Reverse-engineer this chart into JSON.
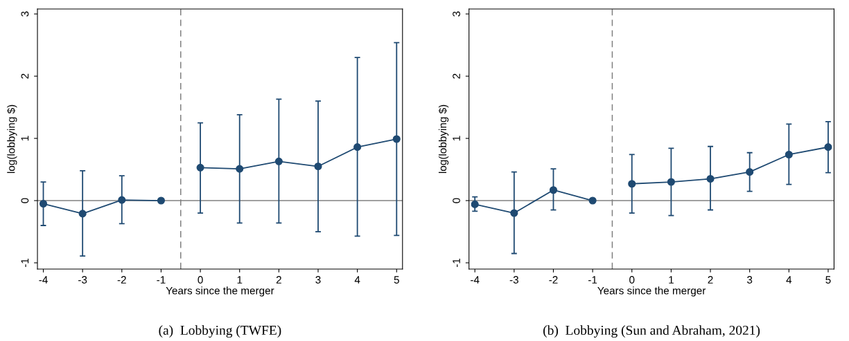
{
  "chart_data": [
    {
      "type": "line",
      "xlabel": "Years since the merger",
      "ylabel": "log(lobbying $)",
      "series": [
        {
          "color": "#1f4a72",
          "x": [
            -4,
            -3,
            -2,
            -1
          ],
          "values": [
            -0.05,
            -0.21,
            0.01,
            0
          ],
          "errors": [
            [
              -0.4,
              0.3
            ],
            [
              -0.89,
              0.48
            ],
            [
              -0.37,
              0.4
            ],
            null
          ]
        },
        {
          "color": "#1f4a72",
          "x": [
            0,
            1,
            2,
            3,
            4,
            5
          ],
          "values": [
            0.53,
            0.51,
            0.63,
            0.55,
            0.86,
            0.99
          ],
          "errors": [
            [
              -0.2,
              1.25
            ],
            [
              -0.36,
              1.38
            ],
            [
              -0.36,
              1.63
            ],
            [
              -0.5,
              1.6
            ],
            [
              -0.57,
              2.3
            ],
            [
              -0.56,
              2.54
            ]
          ]
        }
      ],
      "xlim": [
        -4.15,
        5.15
      ],
      "ylim": [
        -1.1,
        3.08
      ],
      "xticks": [
        -4,
        -3,
        -2,
        -1,
        0,
        1,
        2,
        3,
        4,
        5
      ],
      "yticks": [
        -1,
        0,
        1,
        2,
        3
      ],
      "ref_lines": [
        {
          "axis": "y",
          "value": 0,
          "color": "#808080",
          "line_style": "solid"
        },
        {
          "axis": "x",
          "value": -0.5,
          "color": "#808080",
          "line_style": "dashed"
        }
      ],
      "marker": "circle",
      "line_style": "solid",
      "grid": false,
      "legend": false,
      "annotations": [
        "(a)  Lobbying (TWFE)"
      ]
    },
    {
      "type": "line",
      "xlabel": "Years since the merger",
      "ylabel": "log(lobbying $)",
      "series": [
        {
          "color": "#1f4a72",
          "x": [
            -4,
            -3,
            -2,
            -1
          ],
          "values": [
            -0.06,
            -0.2,
            0.17,
            0
          ],
          "errors": [
            [
              -0.17,
              0.06
            ],
            [
              -0.85,
              0.46
            ],
            [
              -0.15,
              0.51
            ],
            null
          ]
        },
        {
          "color": "#1f4a72",
          "x": [
            0,
            1,
            2,
            3,
            4,
            5
          ],
          "values": [
            0.27,
            0.3,
            0.35,
            0.46,
            0.74,
            0.86
          ],
          "errors": [
            [
              -0.2,
              0.74
            ],
            [
              -0.24,
              0.84
            ],
            [
              -0.15,
              0.87
            ],
            [
              0.15,
              0.77
            ],
            [
              0.26,
              1.23
            ],
            [
              0.45,
              1.27
            ]
          ]
        }
      ],
      "xlim": [
        -4.15,
        5.15
      ],
      "ylim": [
        -1.1,
        3.08
      ],
      "xticks": [
        -4,
        -3,
        -2,
        -1,
        0,
        1,
        2,
        3,
        4,
        5
      ],
      "yticks": [
        -1,
        0,
        1,
        2,
        3
      ],
      "ref_lines": [
        {
          "axis": "y",
          "value": 0,
          "color": "#808080",
          "line_style": "solid"
        },
        {
          "axis": "x",
          "value": -0.5,
          "color": "#808080",
          "line_style": "dashed"
        }
      ],
      "marker": "circle",
      "line_style": "solid",
      "grid": false,
      "legend": false,
      "annotations": [
        "(b)  Lobbying (Sun and Abraham, 2021)"
      ]
    }
  ]
}
